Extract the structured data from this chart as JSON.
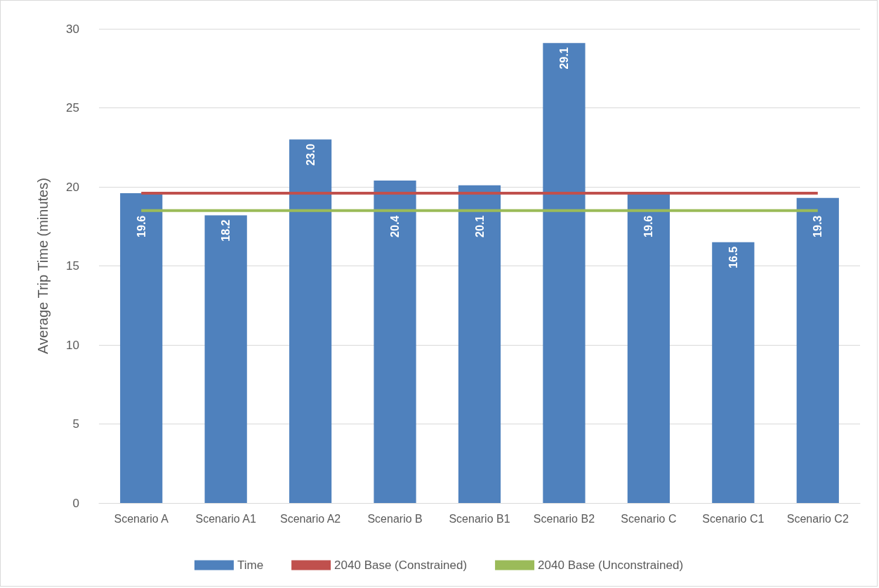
{
  "chart_data": {
    "type": "bar",
    "ylabel": "Average Trip Time (minutes)",
    "categories": [
      "Scenario A",
      "Scenario A1",
      "Scenario A2",
      "Scenario B",
      "Scenario B1",
      "Scenario B2",
      "Scenario C",
      "Scenario C1",
      "Scenario C2"
    ],
    "series": [
      {
        "name": "Time",
        "color": "#4f81bd",
        "values": [
          19.6,
          18.2,
          23.0,
          20.4,
          20.1,
          29.1,
          19.6,
          16.5,
          19.3
        ],
        "value_labels": [
          "19.6",
          "18.2",
          "23.0",
          "20.4",
          "20.1",
          "29.1",
          "19.6",
          "16.5",
          "19.3"
        ]
      },
      {
        "name": "2040 Base (Constrained)",
        "type": "line",
        "color": "#c0504d",
        "values": [
          19.6,
          19.6,
          19.6,
          19.6,
          19.6,
          19.6,
          19.6,
          19.6,
          19.6
        ]
      },
      {
        "name": "2040 Base (Unconstrained)",
        "type": "line",
        "color": "#9bbb59",
        "values": [
          18.5,
          18.5,
          18.5,
          18.5,
          18.5,
          18.5,
          18.5,
          18.5,
          18.5
        ]
      }
    ],
    "ylim": [
      0,
      30
    ],
    "yticks": [
      0,
      5,
      10,
      15,
      20,
      25,
      30
    ],
    "grid": "y",
    "legend": "bottom",
    "marker": "none"
  }
}
